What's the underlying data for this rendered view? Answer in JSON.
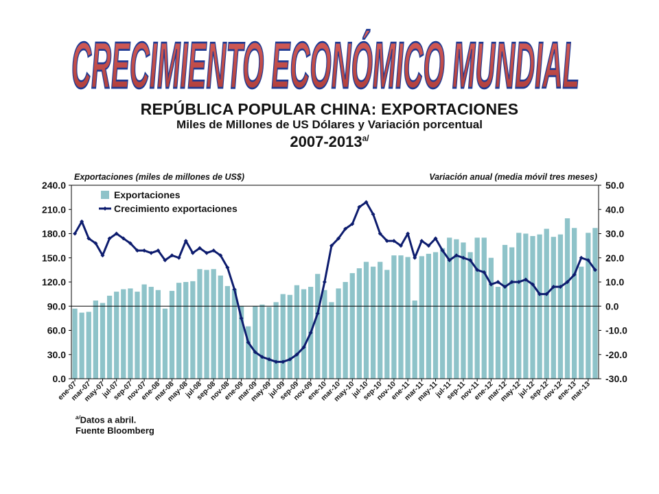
{
  "banner_title": "CRECIMIENTO ECONÓMICO MUNDIAL",
  "header": {
    "title": "REPÚBLICA POPULAR CHINA: EXPORTACIONES",
    "subtitle": "Miles de Millones de US Dólares y Variación porcentual",
    "period": "2007-2013",
    "period_mark": "a/"
  },
  "notes": {
    "mark": "a/",
    "line1": "Datos a abril.",
    "line2": "Fuente Bloomberg"
  },
  "colors": {
    "bars": "#8ec3c9",
    "line": "#0d1c6e",
    "banner_fill": "#c0504d",
    "banner_outline": "#1f3a93"
  },
  "chart_data": {
    "type": "bar+line",
    "left_axis_label": "Exportaciones (miles de millones de US$)",
    "right_axis_label": "Variación anual (media móvil tres meses)",
    "ylim_left": [
      0,
      240
    ],
    "ylim_right": [
      -30,
      50
    ],
    "yticks_left": [
      "240.0",
      "210.0",
      "180.0",
      "150.0",
      "120.0",
      "90.0",
      "60.0",
      "30.0",
      "0.0"
    ],
    "yticks_right": [
      "50.0",
      "40.0",
      "30.0",
      "20.0",
      "10.0",
      "0.0",
      "-10.0",
      "-20.0",
      "-30.0"
    ],
    "xtick_labels": [
      "ene-07",
      "mar-07",
      "may-07",
      "jul-07",
      "sep-07",
      "nov-07",
      "ene-08",
      "mar-08",
      "may-08",
      "jul-08",
      "sep-08",
      "nov-08",
      "ene-09",
      "mar-09",
      "may-09",
      "jul-09",
      "sep-09",
      "nov-09",
      "ene-10",
      "mar-10",
      "may-10",
      "jul-10",
      "sep-10",
      "nov-10",
      "ene-11",
      "mar-11",
      "may-11",
      "jul-11",
      "sep-11",
      "nov-11",
      "ene-12",
      "mar-12",
      "may-12",
      "jul-12",
      "sep-12",
      "nov-12",
      "ene-13",
      "mar-13"
    ],
    "series": [
      {
        "name": "Exportaciones",
        "type": "bar",
        "axis": "left",
        "values": [
          87,
          82,
          83,
          97,
          94,
          103,
          108,
          111,
          112,
          108,
          117,
          114,
          110,
          87,
          109,
          119,
          120,
          121,
          136,
          135,
          136,
          128,
          115,
          111,
          90,
          65,
          90,
          92,
          89,
          95,
          105,
          104,
          116,
          111,
          114,
          130,
          110,
          95,
          112,
          120,
          131,
          137,
          145,
          139,
          145,
          135,
          153,
          153,
          151,
          97,
          152,
          155,
          157,
          162,
          175,
          173,
          169,
          157,
          175,
          175,
          150,
          114,
          166,
          163,
          181,
          180,
          177,
          179,
          186,
          176,
          179,
          199,
          187,
          139,
          181,
          187
        ]
      },
      {
        "name": "Crecimiento exportaciones",
        "type": "line",
        "axis": "right",
        "values": [
          30,
          35,
          28,
          26,
          21,
          28,
          30,
          28,
          26,
          23,
          23,
          22,
          23,
          19,
          21,
          20,
          27,
          22,
          24,
          22,
          23,
          21,
          16,
          7,
          -5,
          -15,
          -19,
          -21,
          -22,
          -23,
          -23,
          -22,
          -20,
          -17,
          -11,
          -3,
          10,
          25,
          28,
          32,
          34,
          41,
          43,
          38,
          30,
          27,
          27,
          25,
          30,
          20,
          27,
          25,
          28,
          23,
          19,
          21,
          20,
          19,
          15,
          14,
          9,
          10,
          8,
          10,
          10,
          11,
          9,
          5,
          5,
          8,
          8,
          10,
          13,
          20,
          19,
          15
        ]
      }
    ]
  }
}
